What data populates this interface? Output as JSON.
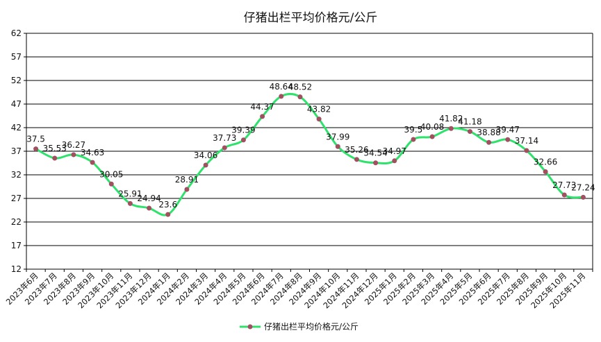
{
  "chart_data": {
    "type": "line",
    "title": "仔猪出栏平均价格元/公斤",
    "xlabel": "",
    "ylabel": "",
    "ylim": [
      12,
      62
    ],
    "yticks": [
      12,
      17,
      22,
      27,
      32,
      37,
      42,
      47,
      52,
      57,
      62
    ],
    "grid": "horizontal",
    "legend_position": "bottom",
    "categories": [
      "2023年6月",
      "2023年7月",
      "2023年8月",
      "2023年9月",
      "2023年10月",
      "2023年11月",
      "2023年12月",
      "2024年1月",
      "2024年2月",
      "2024年3月",
      "2024年4月",
      "2024年5月",
      "2024年6月",
      "2024年7月",
      "2024年8月",
      "2024年9月",
      "2024年10月",
      "2024年11月",
      "2024年12月",
      "2025年1月",
      "2025年2月",
      "2025年3月",
      "2025年4月",
      "2025年5月",
      "2025年6月",
      "2025年7月",
      "2025年8月",
      "2025年9月",
      "2025年10月",
      "2025年11月"
    ],
    "series": [
      {
        "name": "仔猪出栏平均价格元/公斤",
        "color": "#2ee26b",
        "marker_color": "#a05060",
        "values": [
          37.5,
          35.53,
          36.27,
          34.63,
          30.05,
          25.91,
          24.94,
          23.6,
          28.91,
          34.06,
          37.73,
          39.39,
          44.37,
          48.64,
          48.52,
          43.82,
          37.99,
          35.26,
          34.54,
          34.97,
          39.5,
          40.08,
          41.82,
          41.18,
          38.88,
          39.47,
          37.14,
          32.66,
          27.73,
          27.24
        ],
        "labels": [
          "37.5",
          "35.53",
          "36.27",
          "34.63",
          "30.05",
          "25.91",
          "24.94",
          "23.6",
          "28.91",
          "34.06",
          "37.73",
          "39.39",
          "44.37",
          "48.64",
          "48.52",
          "43.82",
          "37.99",
          "35.26",
          "34.54",
          "34.97",
          "39.5",
          "40.08",
          "41.82",
          "41.18",
          "38.88",
          "39.47",
          "37.14",
          "32.66",
          "27.73",
          "27.24"
        ]
      }
    ]
  }
}
